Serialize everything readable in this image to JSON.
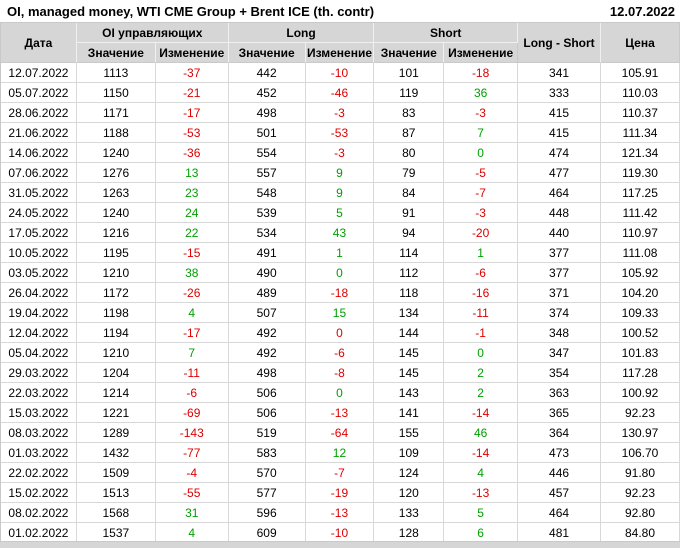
{
  "colors": {
    "positive": "#00a000",
    "negative": "#dd0000",
    "header_bg": "#d6d6d6",
    "grid_line": "#d8d8d8"
  },
  "chart_data": {
    "type": "table",
    "title": "OI, managed money, WTI CME Group + Brent ICE (th. contr)",
    "report_date": "12.07.2022",
    "header": {
      "date_col": "Дата",
      "groups": [
        "OI управляющих",
        "Long",
        "Short"
      ],
      "sub_value": "Значение",
      "sub_change": "Изменение",
      "long_short_col": "Long - Short",
      "price_col": "Цена"
    },
    "rows": [
      {
        "cells": [
          "12.07.2022",
          "1113",
          "-37",
          "442",
          "-10",
          "101",
          "-18",
          "341",
          "105.91"
        ],
        "changes": {
          "2": "negative",
          "4": "negative",
          "6": "negative"
        }
      },
      {
        "cells": [
          "05.07.2022",
          "1150",
          "-21",
          "452",
          "-46",
          "119",
          "36",
          "333",
          "110.03"
        ],
        "changes": {
          "2": "negative",
          "4": "negative",
          "6": "positive"
        }
      },
      {
        "cells": [
          "28.06.2022",
          "1171",
          "-17",
          "498",
          "-3",
          "83",
          "-3",
          "415",
          "110.37"
        ],
        "changes": {
          "2": "negative",
          "4": "negative",
          "6": "negative"
        }
      },
      {
        "cells": [
          "21.06.2022",
          "1188",
          "-53",
          "501",
          "-53",
          "87",
          "7",
          "415",
          "111.34"
        ],
        "changes": {
          "2": "negative",
          "4": "negative",
          "6": "positive"
        }
      },
      {
        "cells": [
          "14.06.2022",
          "1240",
          "-36",
          "554",
          "-3",
          "80",
          "0",
          "474",
          "121.34"
        ],
        "changes": {
          "2": "negative",
          "4": "negative",
          "6": "positive"
        }
      },
      {
        "cells": [
          "07.06.2022",
          "1276",
          "13",
          "557",
          "9",
          "79",
          "-5",
          "477",
          "119.30"
        ],
        "changes": {
          "2": "positive",
          "4": "positive",
          "6": "negative"
        }
      },
      {
        "cells": [
          "31.05.2022",
          "1263",
          "23",
          "548",
          "9",
          "84",
          "-7",
          "464",
          "117.25"
        ],
        "changes": {
          "2": "positive",
          "4": "positive",
          "6": "negative"
        }
      },
      {
        "cells": [
          "24.05.2022",
          "1240",
          "24",
          "539",
          "5",
          "91",
          "-3",
          "448",
          "111.42"
        ],
        "changes": {
          "2": "positive",
          "4": "positive",
          "6": "negative"
        }
      },
      {
        "cells": [
          "17.05.2022",
          "1216",
          "22",
          "534",
          "43",
          "94",
          "-20",
          "440",
          "110.97"
        ],
        "changes": {
          "2": "positive",
          "4": "positive",
          "6": "negative"
        }
      },
      {
        "cells": [
          "10.05.2022",
          "1195",
          "-15",
          "491",
          "1",
          "114",
          "1",
          "377",
          "111.08"
        ],
        "changes": {
          "2": "negative",
          "4": "positive",
          "6": "positive"
        }
      },
      {
        "cells": [
          "03.05.2022",
          "1210",
          "38",
          "490",
          "0",
          "112",
          "-6",
          "377",
          "105.92"
        ],
        "changes": {
          "2": "positive",
          "4": "positive",
          "6": "negative"
        }
      },
      {
        "cells": [
          "26.04.2022",
          "1172",
          "-26",
          "489",
          "-18",
          "118",
          "-16",
          "371",
          "104.20"
        ],
        "changes": {
          "2": "negative",
          "4": "negative",
          "6": "negative"
        }
      },
      {
        "cells": [
          "19.04.2022",
          "1198",
          "4",
          "507",
          "15",
          "134",
          "-11",
          "374",
          "109.33"
        ],
        "changes": {
          "2": "positive",
          "4": "positive",
          "6": "negative"
        }
      },
      {
        "cells": [
          "12.04.2022",
          "1194",
          "-17",
          "492",
          "0",
          "144",
          "-1",
          "348",
          "100.52"
        ],
        "changes": {
          "2": "negative",
          "4": "negative",
          "6": "negative"
        }
      },
      {
        "cells": [
          "05.04.2022",
          "1210",
          "7",
          "492",
          "-6",
          "145",
          "0",
          "347",
          "101.83"
        ],
        "changes": {
          "2": "positive",
          "4": "negative",
          "6": "positive"
        }
      },
      {
        "cells": [
          "29.03.2022",
          "1204",
          "-11",
          "498",
          "-8",
          "145",
          "2",
          "354",
          "117.28"
        ],
        "changes": {
          "2": "negative",
          "4": "negative",
          "6": "positive"
        }
      },
      {
        "cells": [
          "22.03.2022",
          "1214",
          "-6",
          "506",
          "0",
          "143",
          "2",
          "363",
          "100.92"
        ],
        "changes": {
          "2": "negative",
          "4": "positive",
          "6": "positive"
        }
      },
      {
        "cells": [
          "15.03.2022",
          "1221",
          "-69",
          "506",
          "-13",
          "141",
          "-14",
          "365",
          "92.23"
        ],
        "changes": {
          "2": "negative",
          "4": "negative",
          "6": "negative"
        }
      },
      {
        "cells": [
          "08.03.2022",
          "1289",
          "-143",
          "519",
          "-64",
          "155",
          "46",
          "364",
          "130.97"
        ],
        "changes": {
          "2": "negative",
          "4": "negative",
          "6": "positive"
        }
      },
      {
        "cells": [
          "01.03.2022",
          "1432",
          "-77",
          "583",
          "12",
          "109",
          "-14",
          "473",
          "106.70"
        ],
        "changes": {
          "2": "negative",
          "4": "positive",
          "6": "negative"
        }
      },
      {
        "cells": [
          "22.02.2022",
          "1509",
          "-4",
          "570",
          "-7",
          "124",
          "4",
          "446",
          "91.80"
        ],
        "changes": {
          "2": "negative",
          "4": "negative",
          "6": "positive"
        }
      },
      {
        "cells": [
          "15.02.2022",
          "1513",
          "-55",
          "577",
          "-19",
          "120",
          "-13",
          "457",
          "92.23"
        ],
        "changes": {
          "2": "negative",
          "4": "negative",
          "6": "negative"
        }
      },
      {
        "cells": [
          "08.02.2022",
          "1568",
          "31",
          "596",
          "-13",
          "133",
          "5",
          "464",
          "92.80"
        ],
        "changes": {
          "2": "positive",
          "4": "negative",
          "6": "positive"
        }
      },
      {
        "cells": [
          "01.02.2022",
          "1537",
          "4",
          "609",
          "-10",
          "128",
          "6",
          "481",
          "84.80"
        ],
        "changes": {
          "2": "positive",
          "4": "negative",
          "6": "positive"
        }
      }
    ]
  }
}
